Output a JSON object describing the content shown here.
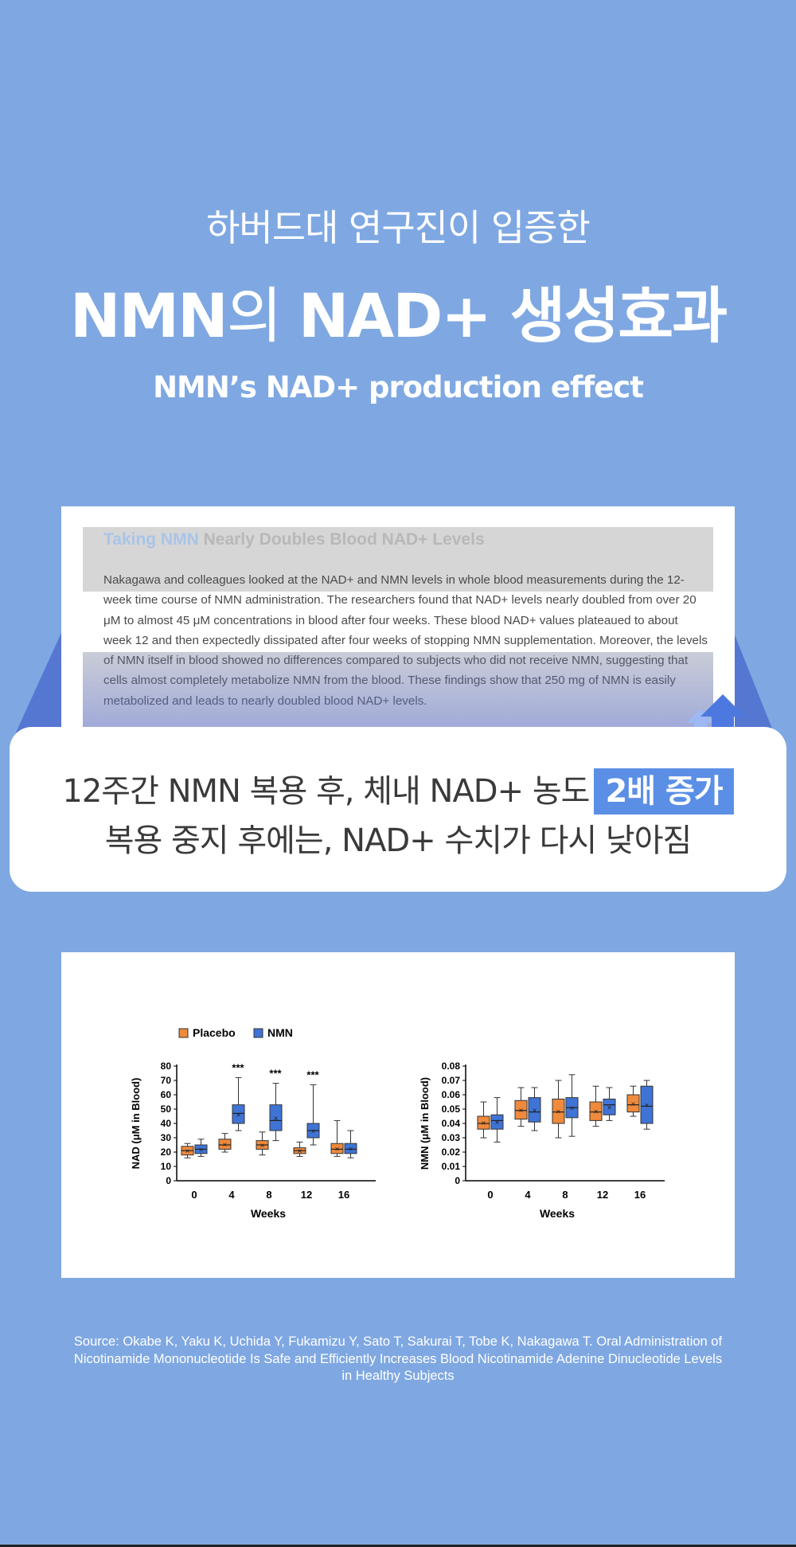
{
  "header": {
    "subtitle_ko": "하버드대 연구진이 입증한",
    "title_part1": "NMN",
    "title_part2": "의 ",
    "title_part3": "NAD+ 생성효과",
    "title_en": "NMN’s NAD+ production effect"
  },
  "article": {
    "title_highlight": "Taking NMN",
    "title_rest": " Nearly Doubles Blood NAD+ Levels",
    "body": "Nakagawa and colleagues looked at the NAD+ and NMN levels in whole blood measurements during the 12-week time course of NMN administration. The researchers found that NAD+ levels nearly doubled from over 20 μM to almost 45 μM concentrations in blood after four weeks. These blood NAD+ values plateaued to about week 12 and then expectedly dissipated after four weeks of stopping NMN supplementation. Moreover, the levels of NMN itself in blood showed no differences compared to subjects who did not receive NMN, suggesting that cells almost completely metabolize NMN from the blood. These findings show that 250 mg of NMN is easily metabolized and leads to nearly doubled blood NAD+ levels."
  },
  "callout": {
    "line1_text": "12주간 NMN 복용 후, 체내 NAD+ 농도",
    "line1_badge": "2배 증가",
    "line2_text": "복용 중지 후에는, NAD+ 수치가 다시 낮아짐"
  },
  "colors": {
    "background": "#7fa8e2",
    "placebo": "#f08a3c",
    "nmn": "#3f74d6",
    "badge": "#5b8fe6"
  },
  "chart_data": [
    {
      "type": "box",
      "ylabel": "NAD (μM in Blood)",
      "xlabel": "Weeks",
      "legend": [
        "Placebo",
        "NMN"
      ],
      "legend_position": "top-left",
      "categories": [
        "0",
        "4",
        "8",
        "12",
        "16"
      ],
      "ylim": [
        0,
        80
      ],
      "yticks": [
        "0",
        "10",
        "20",
        "30",
        "40",
        "50",
        "60",
        "70",
        "80"
      ],
      "annotations": [
        "",
        "***",
        "***",
        "***",
        ""
      ],
      "series": [
        {
          "name": "Placebo",
          "boxes": [
            {
              "min": 16,
              "q1": 18,
              "median": 21,
              "q3": 24,
              "max": 26
            },
            {
              "min": 20,
              "q1": 22,
              "median": 25,
              "q3": 29,
              "max": 33
            },
            {
              "min": 18,
              "q1": 22,
              "median": 25,
              "q3": 28,
              "max": 34
            },
            {
              "min": 17,
              "q1": 19,
              "median": 21,
              "q3": 23,
              "max": 27
            },
            {
              "min": 17,
              "q1": 19,
              "median": 22,
              "q3": 26,
              "max": 42
            }
          ]
        },
        {
          "name": "NMN",
          "boxes": [
            {
              "min": 17,
              "q1": 19,
              "median": 22,
              "q3": 25,
              "max": 29
            },
            {
              "min": 35,
              "q1": 40,
              "median": 47,
              "q3": 53,
              "max": 72
            },
            {
              "min": 28,
              "q1": 35,
              "median": 42,
              "q3": 53,
              "max": 68
            },
            {
              "min": 25,
              "q1": 30,
              "median": 35,
              "q3": 40,
              "max": 67
            },
            {
              "min": 16,
              "q1": 19,
              "median": 22,
              "q3": 26,
              "max": 35
            }
          ]
        }
      ]
    },
    {
      "type": "box",
      "ylabel": "NMN (μM in Blood)",
      "xlabel": "Weeks",
      "categories": [
        "0",
        "4",
        "8",
        "12",
        "16"
      ],
      "ylim": [
        0,
        0.08
      ],
      "yticks": [
        "0",
        "0.01",
        "0.02",
        "0.03",
        "0.04",
        "0.05",
        "0.06",
        "0.07",
        "0.08"
      ],
      "series": [
        {
          "name": "Placebo",
          "boxes": [
            {
              "min": 0.03,
              "q1": 0.036,
              "median": 0.04,
              "q3": 0.045,
              "max": 0.055
            },
            {
              "min": 0.038,
              "q1": 0.043,
              "median": 0.049,
              "q3": 0.056,
              "max": 0.065
            },
            {
              "min": 0.03,
              "q1": 0.04,
              "median": 0.048,
              "q3": 0.057,
              "max": 0.07
            },
            {
              "min": 0.038,
              "q1": 0.042,
              "median": 0.048,
              "q3": 0.055,
              "max": 0.066
            },
            {
              "min": 0.045,
              "q1": 0.048,
              "median": 0.053,
              "q3": 0.06,
              "max": 0.066
            }
          ]
        },
        {
          "name": "NMN",
          "boxes": [
            {
              "min": 0.027,
              "q1": 0.036,
              "median": 0.042,
              "q3": 0.046,
              "max": 0.058
            },
            {
              "min": 0.035,
              "q1": 0.041,
              "median": 0.048,
              "q3": 0.058,
              "max": 0.065
            },
            {
              "min": 0.031,
              "q1": 0.044,
              "median": 0.051,
              "q3": 0.058,
              "max": 0.074
            },
            {
              "min": 0.042,
              "q1": 0.046,
              "median": 0.053,
              "q3": 0.057,
              "max": 0.065
            },
            {
              "min": 0.036,
              "q1": 0.04,
              "median": 0.052,
              "q3": 0.066,
              "max": 0.07
            }
          ]
        }
      ]
    }
  ],
  "source": "Source: Okabe K, Yaku K, Uchida Y, Fukamizu Y, Sato T, Sakurai T, Tobe K, Nakagawa T. Oral Administration of Nicotinamide Mononucleotide Is Safe and Efficiently Increases Blood Nicotinamide Adenine Dinucleotide Levels in Healthy Subjects"
}
